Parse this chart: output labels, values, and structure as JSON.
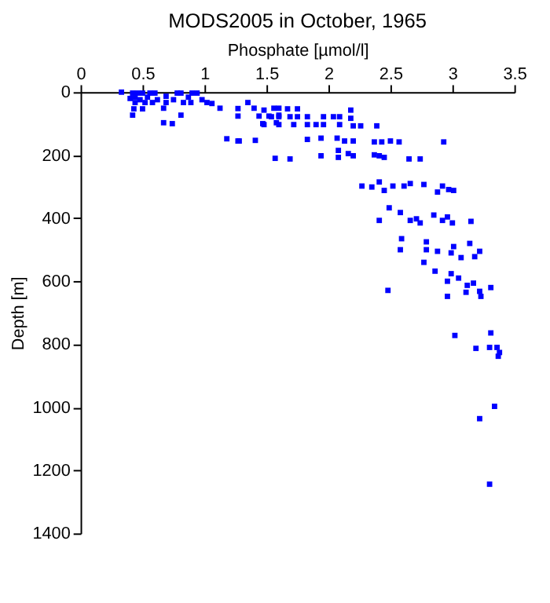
{
  "chart_data": {
    "type": "scatter",
    "title": "MODS2005 in October, 1965",
    "xlabel": "Phosphate [µmol/l]",
    "ylabel": "Depth [m]",
    "marker": "square",
    "grid": false,
    "xlim": [
      0,
      3.5
    ],
    "xticks": [
      0,
      0.5,
      1,
      1.5,
      2,
      2.5,
      3,
      3.5
    ],
    "ylim": [
      1400,
      0
    ],
    "yticks": [
      0,
      200,
      400,
      600,
      800,
      1000,
      1200,
      1400
    ],
    "series": [
      {
        "color": "#0000ff",
        "x": [
          0.33,
          0.42,
          0.46,
          0.5,
          0.56,
          0.6,
          0.4,
          0.44,
          0.48,
          0.54,
          0.44,
          0.52,
          0.43,
          0.5,
          0.69,
          0.69,
          0.75,
          0.78,
          0.81,
          0.83,
          0.87,
          0.9,
          0.94,
          0.98,
          1.02,
          1.06,
          0.58,
          0.62,
          0.89,
          0.42,
          0.67,
          0.67,
          0.74,
          0.81,
          1.125,
          1.27,
          1.27,
          1.35,
          1.4,
          1.44,
          1.47,
          1.52,
          1.56,
          1.6,
          1.6,
          1.58,
          1.18,
          1.27,
          1.41,
          1.57,
          1.48,
          1.67,
          1.75,
          1.48,
          1.54,
          1.6,
          1.6,
          1.69,
          1.72,
          1.75,
          1.83,
          1.83,
          1.9,
          1.96,
          1.96,
          2.04,
          2.09,
          2.09,
          2.18,
          2.18,
          2.2,
          2.26,
          2.39,
          1.28,
          1.83,
          1.94,
          2.07,
          2.13,
          2.2,
          2.37,
          2.43,
          2.5,
          2.57,
          2.93,
          1.69,
          1.94,
          2.08,
          2.08,
          2.16,
          2.2,
          2.37,
          2.41,
          2.45,
          2.65,
          2.74,
          2.27,
          2.35,
          2.41,
          2.45,
          2.52,
          2.61,
          2.66,
          2.77,
          2.88,
          2.92,
          2.97,
          3.01,
          2.49,
          2.58,
          2.41,
          2.66,
          2.71,
          2.74,
          2.85,
          2.92,
          2.96,
          3.0,
          3.15,
          2.59,
          2.58,
          2.79,
          2.79,
          2.88,
          3.01,
          2.99,
          3.14,
          3.22,
          3.07,
          3.18,
          2.77,
          2.86,
          2.99,
          3.05,
          2.96,
          3.12,
          3.17,
          3.22,
          3.11,
          3.31,
          3.23,
          2.96,
          2.48,
          3.02,
          3.31,
          3.19,
          3.3,
          3.36,
          3.38,
          3.37,
          3.34,
          3.22,
          3.3
        ],
        "values": [
          0,
          3,
          3,
          3,
          3,
          3,
          20,
          16,
          24,
          16,
          33,
          33,
          53,
          53,
          13,
          33,
          24,
          3,
          3,
          33,
          16,
          3,
          3,
          24,
          33,
          36,
          33,
          24,
          33,
          73,
          51,
          97,
          100,
          73,
          51,
          52,
          76,
          33,
          51,
          76,
          100,
          76,
          51,
          51,
          73,
          97,
          148,
          155,
          153,
          210,
          57,
          53,
          53,
          103,
          78,
          78,
          103,
          78,
          103,
          78,
          78,
          103,
          103,
          78,
          103,
          78,
          78,
          103,
          57,
          83,
          107,
          107,
          107,
          155,
          150,
          146,
          146,
          155,
          155,
          158,
          158,
          155,
          158,
          158,
          212,
          202,
          185,
          207,
          195,
          202,
          199,
          202,
          207,
          212,
          212,
          298,
          301,
          285,
          312,
          298,
          298,
          290,
          293,
          317,
          298,
          309,
          312,
          367,
          382,
          407,
          407,
          402,
          415,
          390,
          407,
          396,
          415,
          410,
          465,
          500,
          475,
          500,
          505,
          490,
          510,
          480,
          505,
          525,
          522,
          540,
          568,
          576,
          590,
          600,
          613,
          606,
          632,
          635,
          620,
          648,
          648,
          629,
          772,
          764,
          813,
          810,
          810,
          826,
          838,
          997,
          1036,
          1244
        ]
      }
    ]
  }
}
